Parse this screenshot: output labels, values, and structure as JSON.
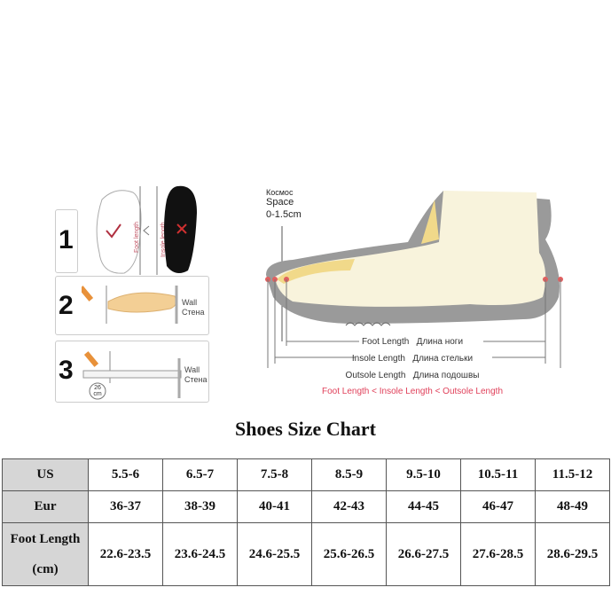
{
  "steps": {
    "step1": "1",
    "step2": "2",
    "step3": "3",
    "foot_length_vertical": "Foot length",
    "insole_length_vertical": "Insole length",
    "wall_en": "Wall",
    "wall_ru": "Стена",
    "ruler_reading": "26",
    "ruler_unit": "cm"
  },
  "diagram": {
    "space_ru": "Космос",
    "space_en": "Space",
    "space_range": "0-1.5cm",
    "foot_length_en": "Foot Length",
    "foot_length_ru": "Длина ноги",
    "insole_length_en": "Insole Length",
    "insole_length_ru": "Длина стельки",
    "outsole_length_en": "Outsole Length",
    "outsole_length_ru": "Длина подошвы",
    "relation": "Foot Length < Insole Length < Outsole Length",
    "relation_color": "#e0405a"
  },
  "chart_title": "Shoes Size Chart",
  "table": {
    "rows": [
      {
        "header": "US",
        "values": [
          "5.5-6",
          "6.5-7",
          "7.5-8",
          "8.5-9",
          "9.5-10",
          "10.5-11",
          "11.5-12"
        ]
      },
      {
        "header": "Eur",
        "values": [
          "36-37",
          "38-39",
          "40-41",
          "42-43",
          "44-45",
          "46-47",
          "48-49"
        ]
      },
      {
        "header": "Foot Length",
        "header2": "(cm)",
        "values": [
          "22.6-23.5",
          "23.6-24.5",
          "24.6-25.5",
          "25.6-26.5",
          "26.6-27.5",
          "27.6-28.5",
          "28.6-29.5"
        ]
      }
    ]
  }
}
